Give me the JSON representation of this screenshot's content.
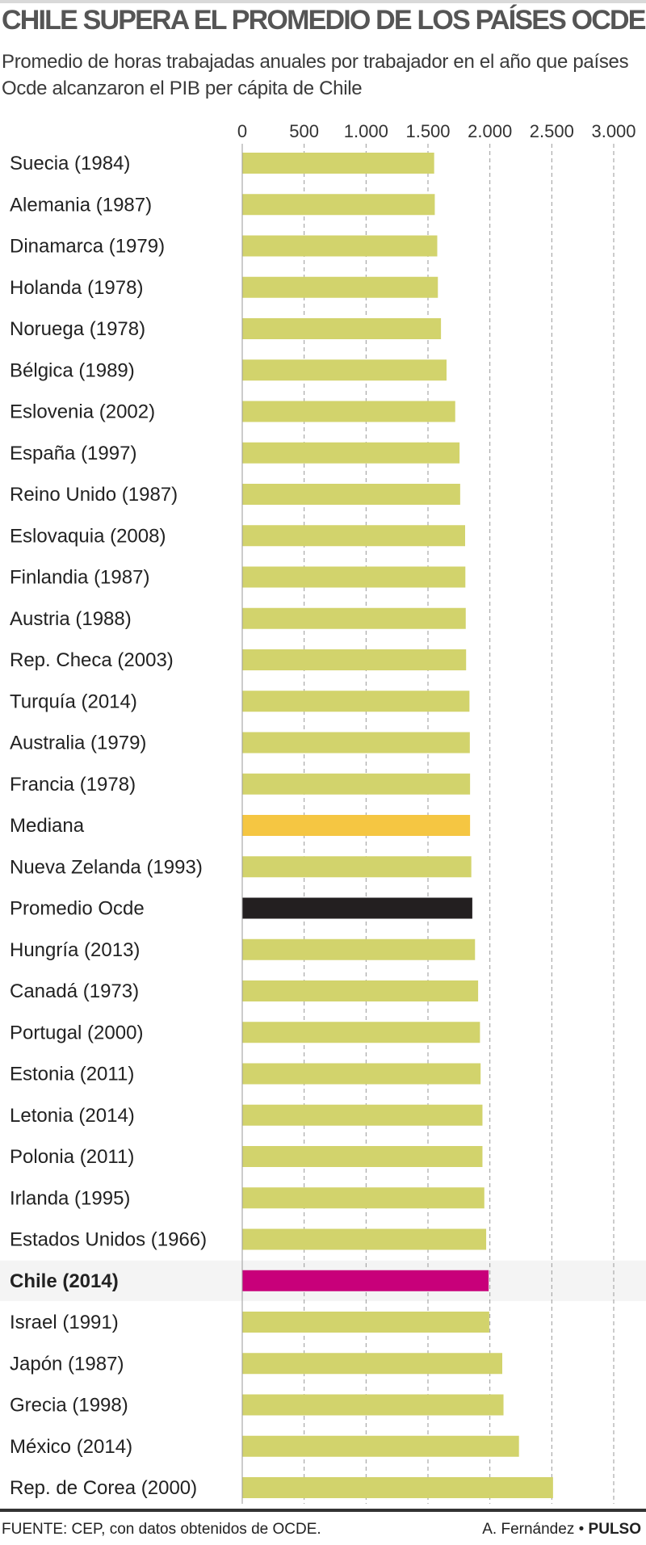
{
  "chart_data": {
    "type": "bar",
    "orientation": "horizontal",
    "title": "CHILE SUPERA EL PROMEDIO DE LOS PAÍSES OCDE",
    "subtitle": "Promedio de horas trabajadas anuales por trabajador en el año que países Ocde alcanzaron el PIB per cápita de Chile",
    "xlim": [
      0,
      3000
    ],
    "xticks": [
      0,
      500,
      1000,
      1500,
      2000,
      2500,
      3000
    ],
    "xtick_labels": [
      "0",
      "500",
      "1.000",
      "1.500",
      "2.000",
      "2.500",
      "3.000"
    ],
    "grid": "vertical dashed",
    "categories": [
      "Suecia (1984)",
      "Alemania (1987)",
      "Dinamarca (1979)",
      "Holanda (1978)",
      "Noruega (1978)",
      "Bélgica (1989)",
      "Eslovenia (2002)",
      "España (1997)",
      "Reino Unido (1987)",
      "Eslovaquia (2008)",
      "Finlandia (1987)",
      "Austria (1988)",
      "Rep. Checa (2003)",
      "Turquía (2014)",
      "Australia (1979)",
      "Francia (1978)",
      "Mediana",
      "Nueva Zelanda (1993)",
      "Promedio Ocde",
      "Hungría (2013)",
      "Canadá (1973)",
      "Portugal (2000)",
      "Estonia (2011)",
      "Letonia (2014)",
      "Polonia (2011)",
      "Irlanda (1995)",
      "Estados Unidos (1966)",
      "Chile (2014)",
      "Israel (1991)",
      "Japón (1987)",
      "Grecia (1998)",
      "México (2014)",
      "Rep. de Corea (2000)"
    ],
    "values": [
      1550,
      1555,
      1575,
      1580,
      1605,
      1650,
      1720,
      1755,
      1760,
      1800,
      1802,
      1805,
      1808,
      1835,
      1838,
      1840,
      1840,
      1850,
      1858,
      1880,
      1905,
      1920,
      1925,
      1940,
      1940,
      1955,
      1970,
      1990,
      1995,
      2100,
      2110,
      2235,
      2510
    ],
    "highlights": {
      "Mediana": "#f5c642",
      "Promedio Ocde": "#231f20",
      "Chile (2014)": "#c8007a"
    },
    "default_color": "#d2d36c",
    "highlight_row_label": "Chile (2014)"
  },
  "footer": {
    "source": "FUENTE: CEP, con datos obtenidos de OCDE.",
    "author": "A. Fernández",
    "separator": " • ",
    "outlet": "PULSO"
  }
}
